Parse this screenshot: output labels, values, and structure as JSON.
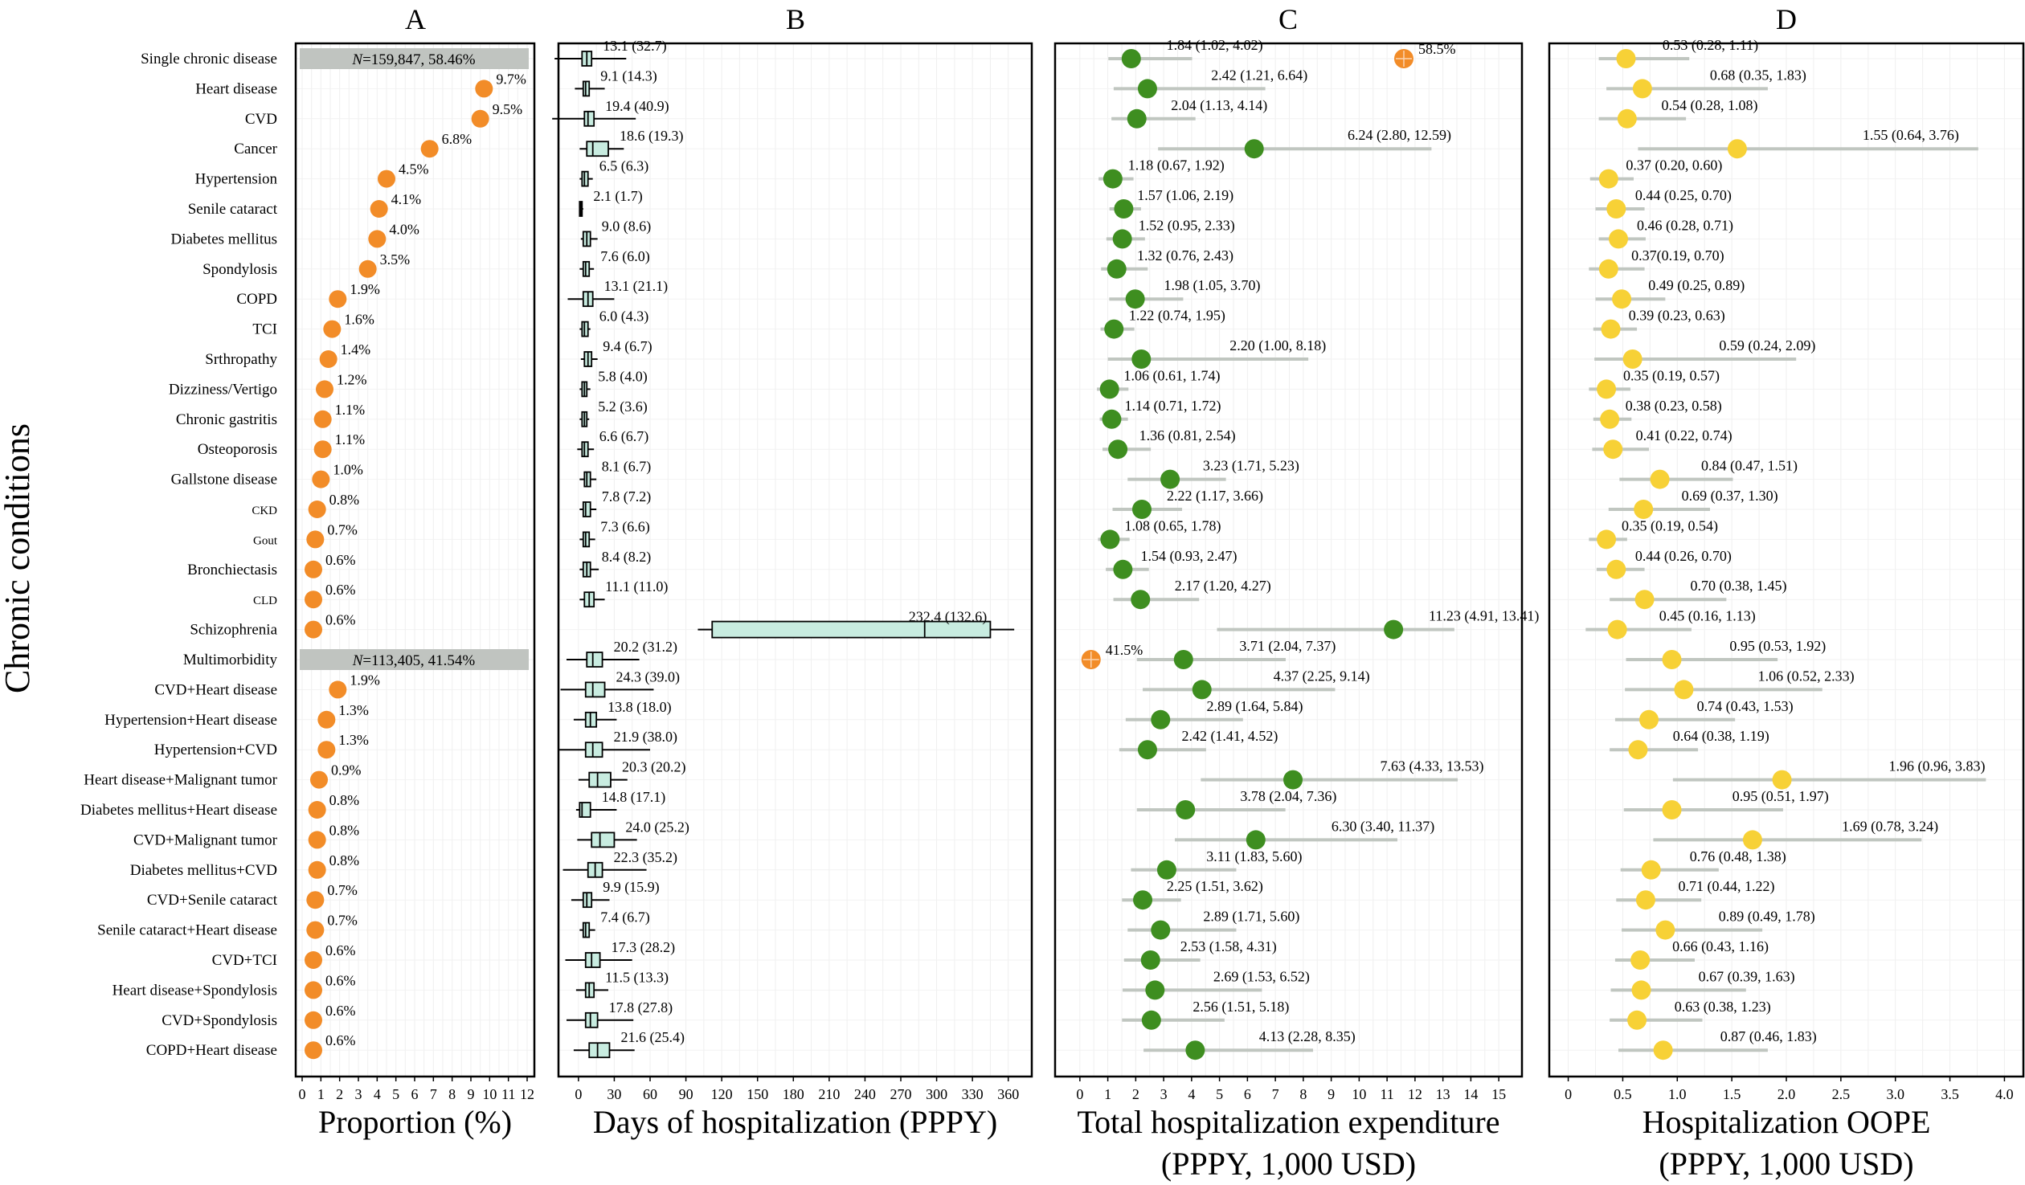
{
  "y_axis_title": "Chronic conditions",
  "conditions": [
    "Single chronic disease",
    "Heart disease",
    "CVD",
    "Cancer",
    "Hypertension",
    "Senile cataract",
    "Diabetes mellitus",
    "Spondylosis",
    "COPD",
    "TCI",
    "Srthropathy",
    "Dizziness/Vertigo",
    "Chronic gastritis",
    "Osteoporosis",
    "Gallstone disease",
    "CKD",
    "Gout",
    "Bronchiectasis",
    "CLD",
    "Schizophrenia",
    "Multimorbidity",
    "CVD+Heart disease",
    "Hypertension+Heart disease",
    "Hypertension+CVD",
    "Heart disease+Malignant tumor",
    "Diabetes mellitus+Heart disease",
    "CVD+Malignant tumor",
    "Diabetes mellitus+CVD",
    "CVD+Senile cataract",
    "Senile cataract+Heart disease",
    "CVD+TCI",
    "Heart disease+Spondylosis",
    "CVD+Spondylosis",
    "COPD+Heart disease"
  ],
  "chart_data": [
    {
      "type": "scatter",
      "panel": "A",
      "xlabel": "Proportion (%)",
      "xlim": [
        0,
        12
      ],
      "xticks": [
        0,
        1,
        2,
        3,
        4,
        5,
        6,
        7,
        8,
        9,
        10,
        11,
        12
      ],
      "marker_color": "#f28c28",
      "group_labels": [
        {
          "row": 0,
          "text": "N=159,847, 58.46%"
        },
        {
          "row": 20,
          "text": "N=113,405, 41.54%"
        }
      ],
      "group_label_color": "#c0c4c0",
      "values": [
        null,
        9.7,
        9.5,
        6.8,
        4.5,
        4.1,
        4.0,
        3.5,
        1.9,
        1.6,
        1.4,
        1.2,
        1.1,
        1.1,
        1.0,
        0.8,
        0.7,
        0.6,
        0.6,
        0.6,
        null,
        1.9,
        1.3,
        1.3,
        0.9,
        0.8,
        0.8,
        0.8,
        0.7,
        0.7,
        0.6,
        0.6,
        0.6,
        0.6
      ],
      "labels": [
        null,
        "9.7%",
        "9.5%",
        "6.8%",
        "4.5%",
        "4.1%",
        "4.0%",
        "3.5%",
        "1.9%",
        "1.6%",
        "1.4%",
        "1.2%",
        "1.1%",
        "1.1%",
        "1.0%",
        "0.8%",
        "0.7%",
        "0.6%",
        "0.6%",
        "0.6%",
        null,
        "1.9%",
        "1.3%",
        "1.3%",
        "0.9%",
        "0.8%",
        "0.8%",
        "0.8%",
        "0.7%",
        "0.7%",
        "0.6%",
        "0.6%",
        "0.6%",
        "0.6%"
      ]
    },
    {
      "type": "box",
      "panel": "B",
      "xlabel": "Days of hospitalization (PPPY)",
      "xlim": [
        -10,
        375
      ],
      "xticks": [
        0,
        30,
        60,
        90,
        120,
        150,
        180,
        210,
        240,
        270,
        300,
        330,
        360
      ],
      "box_color": "#c8ece0",
      "boxes": [
        {
          "mean": 13.1,
          "sd": 32.7,
          "lo": -20,
          "q1": 3,
          "med": 7,
          "q3": 11,
          "hi": 40
        },
        {
          "mean": 9.1,
          "sd": 14.3,
          "lo": -3,
          "q1": 4,
          "med": 6,
          "q3": 9,
          "hi": 22
        },
        {
          "mean": 19.4,
          "sd": 40.9,
          "lo": -22,
          "q1": 5,
          "med": 8,
          "q3": 13,
          "hi": 48
        },
        {
          "mean": 18.6,
          "sd": 19.3,
          "lo": 1,
          "q1": 7,
          "med": 12,
          "q3": 25,
          "hi": 38
        },
        {
          "mean": 6.5,
          "sd": 6.3,
          "lo": 1,
          "q1": 3,
          "med": 5,
          "q3": 8,
          "hi": 12
        },
        {
          "mean": 2.1,
          "sd": 1.7,
          "lo": 0.5,
          "q1": 1,
          "med": 2,
          "q3": 3,
          "hi": 4
        },
        {
          "mean": 9.0,
          "sd": 8.6,
          "lo": 2,
          "q1": 4,
          "med": 7,
          "q3": 10,
          "hi": 16
        },
        {
          "mean": 7.6,
          "sd": 6.0,
          "lo": 1,
          "q1": 4,
          "med": 6,
          "q3": 9,
          "hi": 13
        },
        {
          "mean": 13.1,
          "sd": 21.1,
          "lo": -9,
          "q1": 4,
          "med": 8,
          "q3": 12,
          "hi": 30
        },
        {
          "mean": 6.0,
          "sd": 4.3,
          "lo": 1,
          "q1": 3,
          "med": 5,
          "q3": 8,
          "hi": 10
        },
        {
          "mean": 9.4,
          "sd": 6.7,
          "lo": 2,
          "q1": 5,
          "med": 8,
          "q3": 11,
          "hi": 16
        },
        {
          "mean": 5.8,
          "sd": 4.0,
          "lo": 1,
          "q1": 3,
          "med": 5,
          "q3": 7,
          "hi": 10
        },
        {
          "mean": 5.2,
          "sd": 3.6,
          "lo": 1,
          "q1": 3,
          "med": 5,
          "q3": 7,
          "hi": 9
        },
        {
          "mean": 6.6,
          "sd": 6.7,
          "lo": -1,
          "q1": 3,
          "med": 5,
          "q3": 8,
          "hi": 13
        },
        {
          "mean": 8.1,
          "sd": 6.7,
          "lo": 1,
          "q1": 5,
          "med": 7,
          "q3": 10,
          "hi": 15
        },
        {
          "mean": 7.8,
          "sd": 7.2,
          "lo": 1,
          "q1": 4,
          "med": 6,
          "q3": 10,
          "hi": 15
        },
        {
          "mean": 7.3,
          "sd": 6.6,
          "lo": 1,
          "q1": 4,
          "med": 6,
          "q3": 9,
          "hi": 14
        },
        {
          "mean": 8.4,
          "sd": 8.2,
          "lo": 1,
          "q1": 4,
          "med": 7,
          "q3": 10,
          "hi": 17
        },
        {
          "mean": 11.1,
          "sd": 11.0,
          "lo": 1,
          "q1": 5,
          "med": 9,
          "q3": 13,
          "hi": 22
        },
        {
          "mean": 232.4,
          "sd": 132.6,
          "lo": 100,
          "q1": 112,
          "med": 290,
          "q3": 345,
          "hi": 365
        },
        {
          "mean": 20.2,
          "sd": 31.2,
          "lo": -10,
          "q1": 7,
          "med": 12,
          "q3": 20,
          "hi": 51
        },
        {
          "mean": 24.3,
          "sd": 39.0,
          "lo": -15,
          "q1": 6,
          "med": 12,
          "q3": 22,
          "hi": 63
        },
        {
          "mean": 13.8,
          "sd": 18.0,
          "lo": -4,
          "q1": 6,
          "med": 10,
          "q3": 15,
          "hi": 32
        },
        {
          "mean": 21.9,
          "sd": 38.0,
          "lo": -16,
          "q1": 6,
          "med": 12,
          "q3": 20,
          "hi": 60
        },
        {
          "mean": 20.3,
          "sd": 20.2,
          "lo": 0,
          "q1": 9,
          "med": 16,
          "q3": 27,
          "hi": 41
        },
        {
          "mean": 14.8,
          "sd": 17.1,
          "lo": -2,
          "q1": 1,
          "med": 3,
          "q3": 10,
          "hi": 32
        },
        {
          "mean": 24.0,
          "sd": 25.2,
          "lo": -1,
          "q1": 11,
          "med": 18,
          "q3": 30,
          "hi": 49
        },
        {
          "mean": 22.3,
          "sd": 35.2,
          "lo": -13,
          "q1": 8,
          "med": 14,
          "q3": 20,
          "hi": 57
        },
        {
          "mean": 9.9,
          "sd": 15.9,
          "lo": -6,
          "q1": 4,
          "med": 7,
          "q3": 11,
          "hi": 26
        },
        {
          "mean": 7.4,
          "sd": 6.7,
          "lo": 1,
          "q1": 4,
          "med": 6,
          "q3": 9,
          "hi": 14
        },
        {
          "mean": 17.3,
          "sd": 28.2,
          "lo": -11,
          "q1": 6,
          "med": 11,
          "q3": 18,
          "hi": 45
        },
        {
          "mean": 11.5,
          "sd": 13.3,
          "lo": -2,
          "q1": 6,
          "med": 9,
          "q3": 13,
          "hi": 25
        },
        {
          "mean": 17.8,
          "sd": 27.8,
          "lo": -10,
          "q1": 6,
          "med": 10,
          "q3": 16,
          "hi": 46
        },
        {
          "mean": 21.6,
          "sd": 25.4,
          "lo": -4,
          "q1": 9,
          "med": 16,
          "q3": 26,
          "hi": 47
        }
      ],
      "labels": [
        "13.1 (32.7)",
        "9.1 (14.3)",
        "19.4 (40.9)",
        "18.6 (19.3)",
        "6.5 (6.3)",
        "2.1 (1.7)",
        "9.0 (8.6)",
        "7.6 (6.0)",
        "13.1 (21.1)",
        "6.0 (4.3)",
        "9.4 (6.7)",
        "5.8 (4.0)",
        "5.2 (3.6)",
        "6.6 (6.7)",
        "8.1 (6.7)",
        "7.8 (7.2)",
        "7.3 (6.6)",
        "8.4 (8.2)",
        "11.1 (11.0)",
        "232.4 (132.6)",
        "20.2 (31.2)",
        "24.3 (39.0)",
        "13.8 (18.0)",
        "21.9 (38.0)",
        "20.3 (20.2)",
        "14.8 (17.1)",
        "24.0 (25.2)",
        "22.3 (35.2)",
        "9.9 (15.9)",
        "7.4 (6.7)",
        "17.3 (28.2)",
        "11.5 (13.3)",
        "17.8 (27.8)",
        "21.6 (25.4)"
      ]
    },
    {
      "type": "forest",
      "panel": "C",
      "xlabel": "Total hospitalization expenditure",
      "xlabel2": "(PPPY, 1,000 USD)",
      "xlim": [
        -0.6,
        15.6
      ],
      "xticks": [
        0,
        1,
        2,
        3,
        4,
        5,
        6,
        7,
        8,
        9,
        10,
        11,
        12,
        13,
        14,
        15
      ],
      "point_color": "#3e8e20",
      "ci_color": "#c0c6c0",
      "extra_markers": [
        {
          "row": 0,
          "x": 11.6,
          "text": "58.5%"
        },
        {
          "row": 20,
          "x": 0.4,
          "text": "41.5%"
        }
      ],
      "extra_marker_color": "#f28c28",
      "points": [
        [
          1.84,
          1.02,
          4.02
        ],
        [
          2.42,
          1.21,
          6.64
        ],
        [
          2.04,
          1.13,
          4.14
        ],
        [
          6.24,
          2.8,
          12.59
        ],
        [
          1.18,
          0.67,
          1.92
        ],
        [
          1.57,
          1.06,
          2.19
        ],
        [
          1.52,
          0.95,
          2.33
        ],
        [
          1.32,
          0.76,
          2.43
        ],
        [
          1.98,
          1.05,
          3.7
        ],
        [
          1.22,
          0.74,
          1.95
        ],
        [
          2.2,
          1.0,
          8.18
        ],
        [
          1.06,
          0.61,
          1.74
        ],
        [
          1.14,
          0.71,
          1.72
        ],
        [
          1.36,
          0.81,
          2.54
        ],
        [
          3.23,
          1.71,
          5.23
        ],
        [
          2.22,
          1.17,
          3.66
        ],
        [
          1.08,
          0.65,
          1.78
        ],
        [
          1.54,
          0.93,
          2.47
        ],
        [
          2.17,
          1.2,
          4.27
        ],
        [
          11.23,
          4.91,
          13.41
        ],
        [
          3.71,
          2.04,
          7.37
        ],
        [
          4.37,
          2.25,
          9.14
        ],
        [
          2.89,
          1.64,
          5.84
        ],
        [
          2.42,
          1.41,
          4.52
        ],
        [
          7.63,
          4.33,
          13.53
        ],
        [
          3.78,
          2.04,
          7.36
        ],
        [
          6.3,
          3.4,
          11.37
        ],
        [
          3.11,
          1.83,
          5.6
        ],
        [
          2.25,
          1.51,
          3.62
        ],
        [
          2.89,
          1.71,
          5.6
        ],
        [
          2.53,
          1.58,
          4.31
        ],
        [
          2.69,
          1.53,
          6.52
        ],
        [
          2.56,
          1.51,
          5.18
        ],
        [
          4.13,
          2.28,
          8.35
        ]
      ],
      "labels": [
        "1.84 (1.02, 4.02)",
        "2.42 (1.21, 6.64)",
        "2.04 (1.13, 4.14)",
        "6.24 (2.80, 12.59)",
        "1.18 (0.67, 1.92)",
        "1.57 (1.06, 2.19)",
        "1.52 (0.95, 2.33)",
        "1.32 (0.76, 2.43)",
        "1.98 (1.05, 3.70)",
        "1.22 (0.74, 1.95)",
        "2.20 (1.00, 8.18)",
        "1.06 (0.61, 1.74)",
        "1.14 (0.71, 1.72)",
        "1.36 (0.81, 2.54)",
        "3.23 (1.71, 5.23)",
        "2.22 (1.17, 3.66)",
        "1.08 (0.65, 1.78)",
        "1.54 (0.93, 2.47)",
        "2.17 (1.20, 4.27)",
        "11.23 (4.91, 13.41)",
        "3.71 (2.04, 7.37)",
        "4.37 (2.25, 9.14)",
        "2.89 (1.64, 5.84)",
        "2.42 (1.41, 4.52)",
        "7.63 (4.33, 13.53)",
        "3.78 (2.04, 7.36)",
        "6.30 (3.40, 11.37)",
        "3.11 (1.83, 5.60)",
        "2.25 (1.51, 3.62)",
        "2.89 (1.71, 5.60)",
        "2.53 (1.58, 4.31)",
        "2.69 (1.53, 6.52)",
        "2.56 (1.51, 5.18)",
        "4.13 (2.28, 8.35)"
      ]
    },
    {
      "type": "forest",
      "panel": "D",
      "xlabel": "Hospitalization OOPE",
      "xlabel2": "(PPPY, 1,000 USD)",
      "xlim": [
        -0.1,
        4.1
      ],
      "xticks": [
        0,
        0.5,
        1.0,
        1.5,
        2.0,
        2.5,
        3.0,
        3.5,
        4.0
      ],
      "xtick_labels": [
        "0",
        "0.5",
        "1.0",
        "1.5",
        "2.0",
        "2.5",
        "3.0",
        "3.5",
        "4.0"
      ],
      "point_color": "#f7d136",
      "ci_color": "#c0c6c0",
      "points": [
        [
          0.53,
          0.28,
          1.11
        ],
        [
          0.68,
          0.35,
          1.83
        ],
        [
          0.54,
          0.28,
          1.08
        ],
        [
          1.55,
          0.64,
          3.76
        ],
        [
          0.37,
          0.2,
          0.6
        ],
        [
          0.44,
          0.25,
          0.7
        ],
        [
          0.46,
          0.28,
          0.71
        ],
        [
          0.37,
          0.19,
          0.7
        ],
        [
          0.49,
          0.25,
          0.89
        ],
        [
          0.39,
          0.23,
          0.63
        ],
        [
          0.59,
          0.24,
          2.09
        ],
        [
          0.35,
          0.19,
          0.57
        ],
        [
          0.38,
          0.23,
          0.58
        ],
        [
          0.41,
          0.22,
          0.74
        ],
        [
          0.84,
          0.47,
          1.51
        ],
        [
          0.69,
          0.37,
          1.3
        ],
        [
          0.35,
          0.19,
          0.54
        ],
        [
          0.44,
          0.26,
          0.7
        ],
        [
          0.7,
          0.38,
          1.45
        ],
        [
          0.45,
          0.16,
          1.13
        ],
        [
          0.95,
          0.53,
          1.92
        ],
        [
          1.06,
          0.52,
          2.33
        ],
        [
          0.74,
          0.43,
          1.53
        ],
        [
          0.64,
          0.38,
          1.19
        ],
        [
          1.96,
          0.96,
          3.83
        ],
        [
          0.95,
          0.51,
          1.97
        ],
        [
          1.69,
          0.78,
          3.24
        ],
        [
          0.76,
          0.48,
          1.38
        ],
        [
          0.71,
          0.44,
          1.22
        ],
        [
          0.89,
          0.49,
          1.78
        ],
        [
          0.66,
          0.43,
          1.16
        ],
        [
          0.67,
          0.39,
          1.63
        ],
        [
          0.63,
          0.38,
          1.23
        ],
        [
          0.87,
          0.46,
          1.83
        ]
      ],
      "labels": [
        "0.53 (0.28, 1.11)",
        "0.68 (0.35, 1.83)",
        "0.54 (0.28, 1.08)",
        "1.55 (0.64, 3.76)",
        "0.37 (0.20, 0.60)",
        "0.44 (0.25, 0.70)",
        "0.46 (0.28, 0.71)",
        "0.37(0.19, 0.70)",
        "0.49 (0.25, 0.89)",
        "0.39 (0.23, 0.63)",
        "0.59 (0.24, 2.09)",
        "0.35 (0.19, 0.57)",
        "0.38 (0.23, 0.58)",
        "0.41 (0.22, 0.74)",
        "0.84 (0.47, 1.51)",
        "0.69 (0.37, 1.30)",
        "0.35 (0.19, 0.54)",
        "0.44 (0.26, 0.70)",
        "0.70 (0.38, 1.45)",
        "0.45 (0.16, 1.13)",
        "0.95 (0.53, 1.92)",
        "1.06 (0.52, 2.33)",
        "0.74 (0.43, 1.53)",
        "0.64 (0.38, 1.19)",
        "1.96 (0.96, 3.83)",
        "0.95 (0.51, 1.97)",
        "1.69 (0.78, 3.24)",
        "0.76 (0.48, 1.38)",
        "0.71 (0.44, 1.22)",
        "0.89 (0.49, 1.78)",
        "0.66 (0.43, 1.16)",
        "0.67 (0.39, 1.63)",
        "0.63 (0.38, 1.23)",
        "0.87 (0.46, 1.83)"
      ]
    }
  ]
}
